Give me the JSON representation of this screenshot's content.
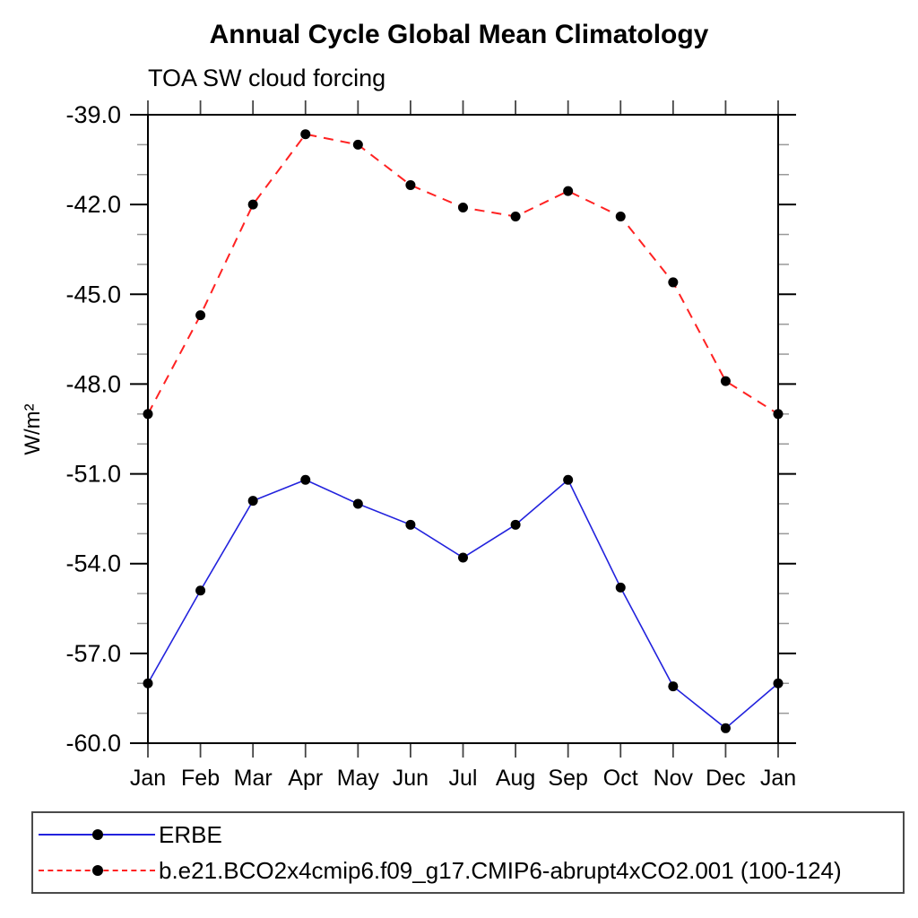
{
  "title": "Annual Cycle Global Mean Climatology",
  "subtitle": "TOA SW cloud forcing",
  "ylabel": "W/m²",
  "legend": {
    "entries": [
      {
        "label": "ERBE",
        "color": "#2222dd",
        "style": "solid"
      },
      {
        "label": "b.e21.BCO2x4cmip6.f09_g17.CMIP6-abrupt4xCO2.001 (100-124)",
        "color": "#ff2222",
        "style": "dashed"
      }
    ]
  },
  "chart_data": {
    "type": "line",
    "title": "Annual Cycle Global Mean Climatology",
    "subtitle": "TOA SW cloud forcing",
    "xlabel": "",
    "ylabel": "W/m²",
    "x_categories": [
      "Jan",
      "Feb",
      "Mar",
      "Apr",
      "May",
      "Jun",
      "Jul",
      "Aug",
      "Sep",
      "Oct",
      "Nov",
      "Dec",
      "Jan"
    ],
    "ylim": [
      -60.0,
      -39.0
    ],
    "y_major_ticks": [
      -39.0,
      -42.0,
      -45.0,
      -48.0,
      -51.0,
      -54.0,
      -57.0,
      -60.0
    ],
    "y_major_tick_labels": [
      "-39.0",
      "-42.0",
      "-45.0",
      "-48.0",
      "-51.0",
      "-54.0",
      "-57.0",
      "-60.0"
    ],
    "y_minor_interval": 1.0,
    "grid": false,
    "legend_position": "bottom",
    "series": [
      {
        "name": "ERBE",
        "color": "#2222dd",
        "line_style": "solid",
        "marker": "circle",
        "values": [
          -58.0,
          -54.9,
          -51.9,
          -51.2,
          -52.0,
          -52.7,
          -53.8,
          -52.7,
          -51.2,
          -54.8,
          -58.1,
          -59.5,
          -58.0
        ]
      },
      {
        "name": "b.e21.BCO2x4cmip6.f09_g17.CMIP6-abrupt4xCO2.001 (100-124)",
        "color": "#ff2222",
        "line_style": "dashed",
        "marker": "circle",
        "values": [
          -49.0,
          -45.7,
          -42.0,
          -39.65,
          -40.0,
          -41.35,
          -42.1,
          -42.4,
          -41.55,
          -42.4,
          -44.6,
          -47.9,
          -49.0
        ]
      }
    ]
  }
}
